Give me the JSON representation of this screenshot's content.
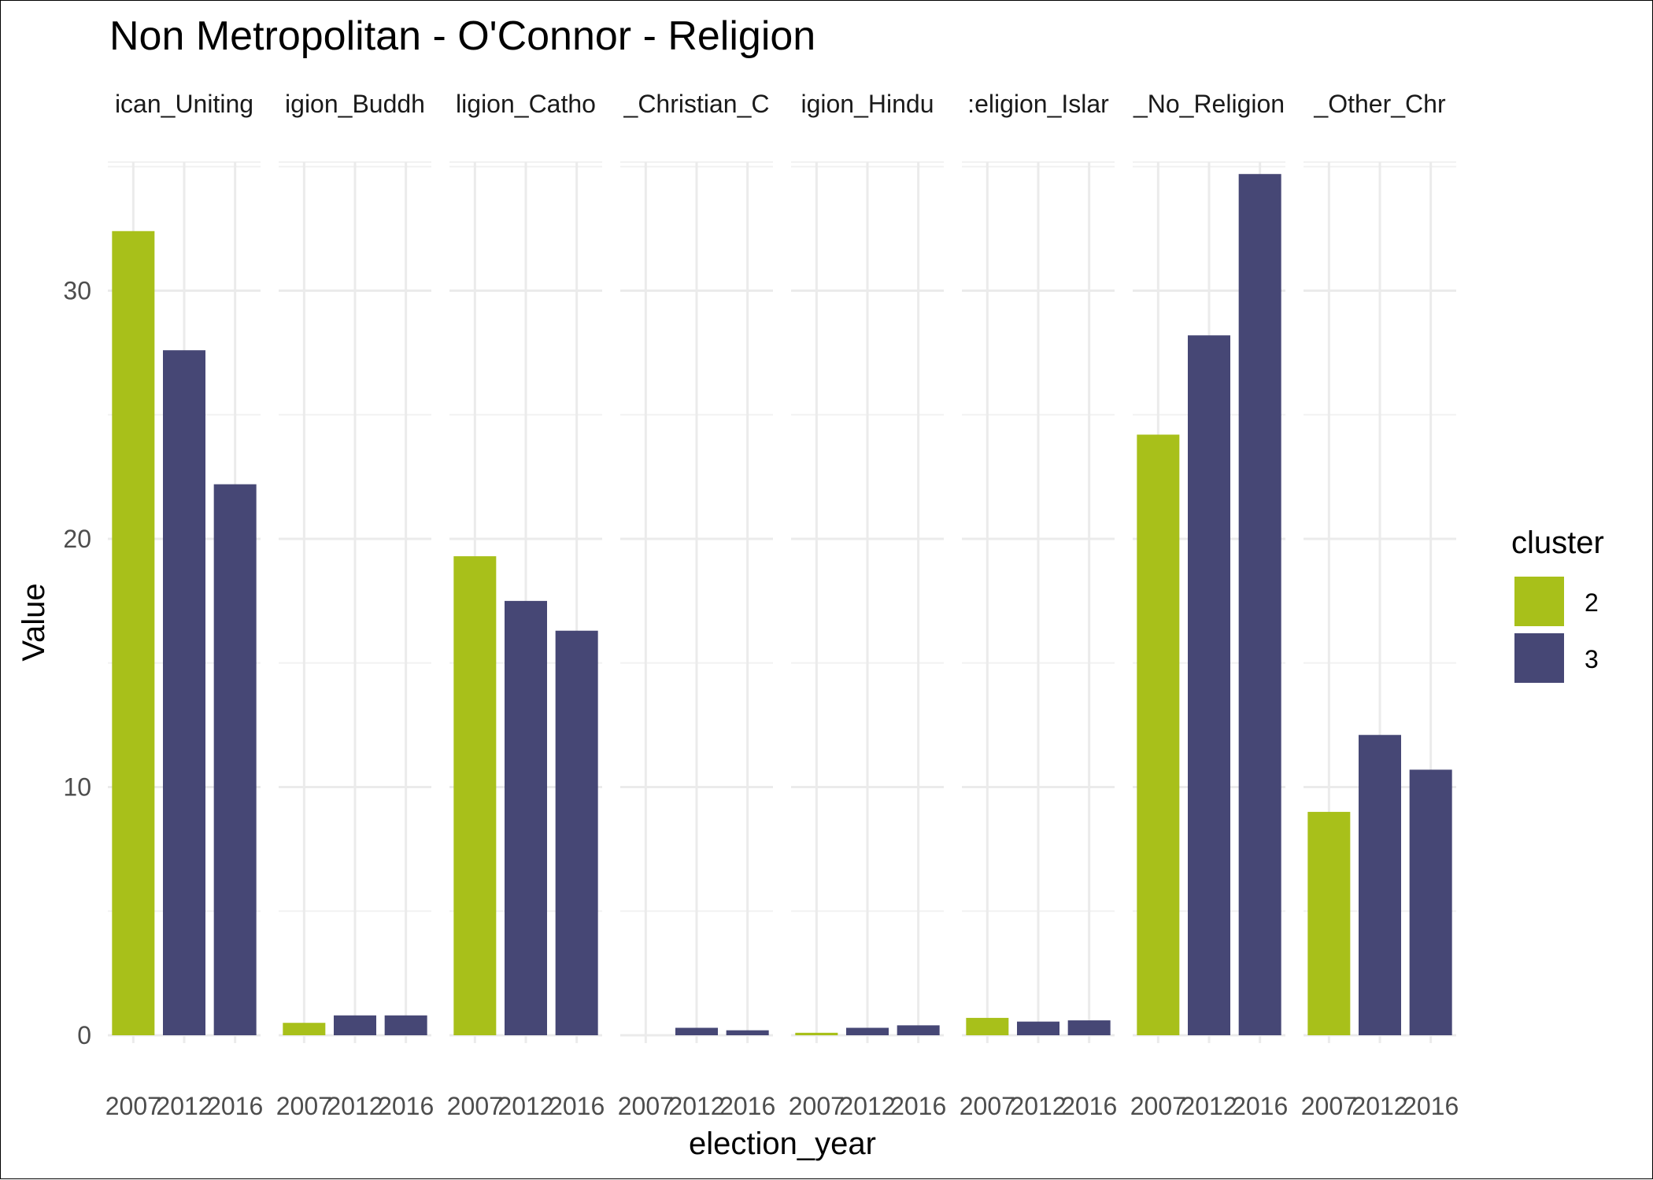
{
  "chart_data": {
    "type": "bar",
    "title": "Non Metropolitan - O'Connor - Religion",
    "xlabel": "election_year",
    "ylabel": "Value",
    "ylim": [
      0,
      36
    ],
    "yticks": [
      0,
      10,
      20,
      30
    ],
    "grid": true,
    "legend": {
      "title": "cluster",
      "position": "right",
      "entries": [
        {
          "label": "2",
          "color": "#A8C01A"
        },
        {
          "label": "3",
          "color": "#464775"
        }
      ]
    },
    "years": [
      "2007",
      "2012",
      "2016"
    ],
    "year_clusters": [
      "2",
      "3",
      "3"
    ],
    "facets": [
      {
        "label": "ican_Uniting",
        "values": [
          32.4,
          27.6,
          22.2
        ]
      },
      {
        "label": "igion_Buddh",
        "values": [
          0.5,
          0.8,
          0.8
        ]
      },
      {
        "label": "ligion_Catho",
        "values": [
          19.3,
          17.5,
          16.3
        ]
      },
      {
        "label": "_Christian_C",
        "values": [
          0.0,
          0.3,
          0.2
        ]
      },
      {
        "label": "igion_Hindu",
        "values": [
          0.1,
          0.3,
          0.4
        ]
      },
      {
        "label": ":eligion_Islar",
        "values": [
          0.7,
          0.55,
          0.6
        ]
      },
      {
        "label": "_No_Religion",
        "values": [
          24.2,
          28.2,
          34.7
        ]
      },
      {
        "label": "_Other_Chr",
        "values": [
          9.0,
          12.1,
          10.7
        ]
      }
    ]
  }
}
